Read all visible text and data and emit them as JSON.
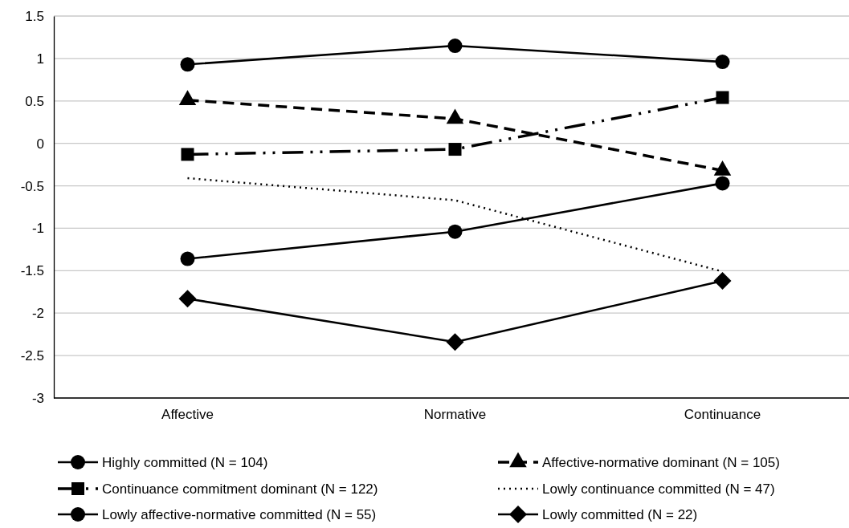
{
  "chart_data": {
    "type": "line",
    "categories": [
      "Affective",
      "Normative",
      "Continuance"
    ],
    "ylim": [
      -3,
      1.5
    ],
    "yticks": [
      -3,
      -2.5,
      -2,
      -1.5,
      -1,
      -0.5,
      0,
      0.5,
      1,
      1.5
    ],
    "grid": "y",
    "legend": "bottom",
    "series": [
      {
        "name": "Highly committed (N = 104)",
        "color": "#000000",
        "marker": "circle",
        "line_style": "solid",
        "values": [
          0.93,
          1.15,
          0.96
        ]
      },
      {
        "name": "Affective-normative dominant (N = 105)",
        "color": "#000000",
        "marker": "triangle",
        "line_style": "dashed",
        "values": [
          0.51,
          0.29,
          -0.32
        ]
      },
      {
        "name": "Continuance commitment dominant (N = 122)",
        "color": "#000000",
        "marker": "square",
        "line_style": "dashdotdot",
        "values": [
          -0.13,
          -0.07,
          0.54
        ]
      },
      {
        "name": "Lowly continuance committed (N = 47)",
        "color": "#000000",
        "marker": "none",
        "line_style": "dotted",
        "values": [
          -0.41,
          -0.67,
          -1.51
        ]
      },
      {
        "name": "Lowly affective-normative committed (N = 55)",
        "color": "#000000",
        "marker": "circle",
        "line_style": "solid",
        "values": [
          -1.36,
          -1.04,
          -0.47
        ]
      },
      {
        "name": "Lowly committed (N = 22)",
        "color": "#000000",
        "marker": "diamond",
        "line_style": "solid",
        "values": [
          -1.83,
          -2.34,
          -1.62
        ]
      }
    ]
  }
}
